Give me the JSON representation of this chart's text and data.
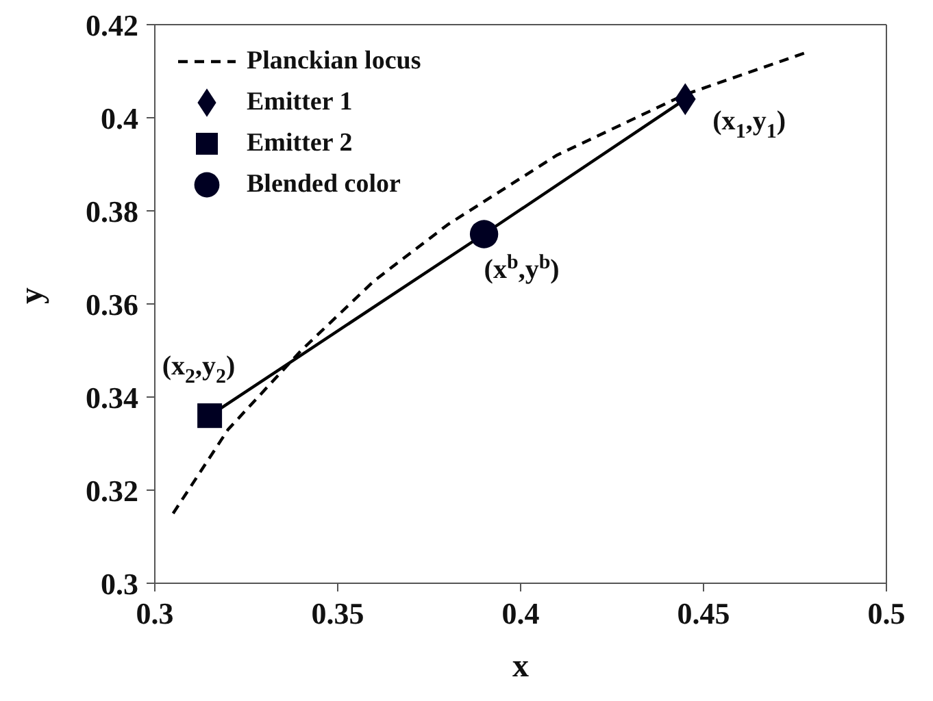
{
  "chart_data": {
    "type": "line",
    "xlabel": "x",
    "ylabel": "y",
    "xlim": [
      0.3,
      0.5
    ],
    "xticks": [
      0.3,
      0.35,
      0.4,
      0.45,
      0.5
    ],
    "ylim": [
      0.3,
      0.42
    ],
    "yticks": [
      0.3,
      0.32,
      0.34,
      0.36,
      0.38,
      0.4,
      0.42
    ],
    "grid": false,
    "legend": "top left",
    "series": [
      {
        "name": "Planckian locus",
        "line_style": "dashed",
        "marker": "none",
        "color": "#000000",
        "x": [
          0.305,
          0.32,
          0.34,
          0.36,
          0.38,
          0.41,
          0.445,
          0.478
        ],
        "values": [
          0.315,
          0.333,
          0.35,
          0.365,
          0.377,
          0.392,
          0.405,
          0.414
        ]
      },
      {
        "line_style": "solid",
        "marker": "none",
        "color": "#000000",
        "x": [
          0.315,
          0.39,
          0.445
        ],
        "values": [
          0.336,
          0.375,
          0.404
        ]
      },
      {
        "name": "Emitter 1",
        "type": "scatter",
        "marker": "diamond",
        "color": "#000022",
        "x": [
          0.445
        ],
        "values": [
          0.404
        ]
      },
      {
        "name": "Emitter 2",
        "type": "scatter",
        "marker": "square",
        "color": "#000022",
        "x": [
          0.315
        ],
        "values": [
          0.336
        ]
      },
      {
        "name": "Blended color",
        "type": "scatter",
        "marker": "circle",
        "color": "#000022",
        "x": [
          0.39
        ],
        "values": [
          0.375
        ]
      }
    ],
    "annotations": [
      {
        "text": "(x$_{1}$,y$_{1}$)",
        "x": 0.445,
        "y": 0.404
      },
      {
        "text": "(x$^{b}$,y$^{b}$)",
        "x": 0.39,
        "y": 0.375
      },
      {
        "text": "(x$_{2}$,y$_{2}$)",
        "x": 0.315,
        "y": 0.336
      }
    ]
  }
}
